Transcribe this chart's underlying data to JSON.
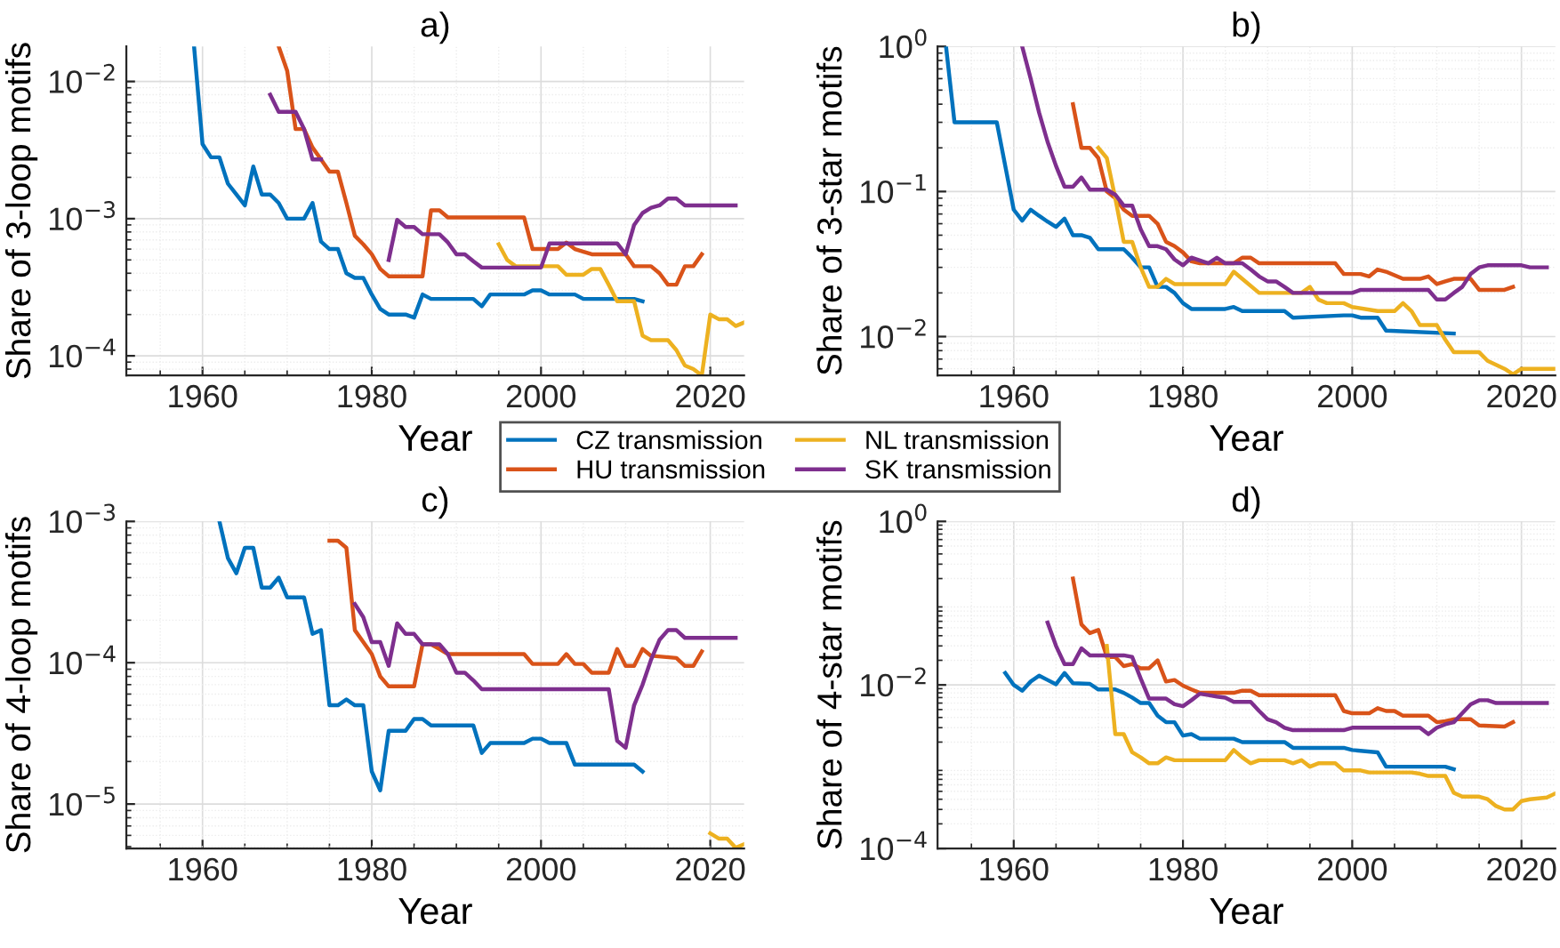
{
  "chart_data": [
    {
      "type": "line",
      "title": "a)",
      "xlabel": "Year",
      "ylabel": "Share of 3-loop motifs",
      "log": "y",
      "grid": true,
      "legend": "bottom",
      "line_style": "solid",
      "marker": "none",
      "xlim": [
        1951,
        2024
      ],
      "xticks": [
        1960,
        1980,
        2000,
        2020
      ],
      "ylim": [
        7.2e-05,
        0.018
      ],
      "yticks": [
        {
          "value": 0.0001,
          "label": "10$^{−4}$"
        },
        {
          "value": 0.001,
          "label": "10$^{−3}$"
        },
        {
          "value": 0.01,
          "label": "10$^{−2}$"
        }
      ],
      "series": [
        {
          "name": "CZ transmission",
          "color": "#0072bd",
          "x": [
            1959,
            1960,
            1961,
            1962,
            1963,
            1964,
            1965,
            1966,
            1967,
            1968,
            1969,
            1970,
            1971,
            1972,
            1973,
            1974,
            1975,
            1976,
            1977,
            1978,
            1979,
            1980,
            1981,
            1982,
            1983,
            1984,
            1985,
            1986,
            1987,
            1992,
            1993,
            1994,
            1998,
            1999,
            2000,
            2001,
            2004,
            2005,
            2011,
            2012
          ],
          "values": [
            0.018,
            0.0035,
            0.0028,
            0.0028,
            0.0018,
            0.0015,
            0.00125,
            0.0024,
            0.0015,
            0.0015,
            0.0013,
            0.001,
            0.001,
            0.001,
            0.0013,
            0.00068,
            0.0006,
            0.0006,
            0.0004,
            0.00037,
            0.00037,
            0.00028,
            0.00022,
            0.0002,
            0.0002,
            0.0002,
            0.00019,
            0.00028,
            0.00026,
            0.00026,
            0.00023,
            0.00028,
            0.00028,
            0.0003,
            0.0003,
            0.00028,
            0.00028,
            0.00026,
            0.00026,
            0.00025
          ]
        },
        {
          "name": "HU transmission",
          "color": "#d95319",
          "x": [
            1969,
            1970,
            1971,
            1972,
            1973,
            1974,
            1975,
            1976,
            1977,
            1978,
            1979,
            1980,
            1981,
            1982,
            1986,
            1987,
            1988,
            1989,
            1998,
            1999,
            2002,
            2003,
            2004,
            2006,
            2010,
            2011,
            2013,
            2014,
            2015,
            2016,
            2017,
            2018,
            2019
          ],
          "values": [
            0.018,
            0.012,
            0.0045,
            0.0045,
            0.0033,
            0.0027,
            0.0022,
            0.0022,
            0.0013,
            0.00075,
            0.00065,
            0.00055,
            0.00043,
            0.00038,
            0.00038,
            0.00115,
            0.00115,
            0.00102,
            0.00102,
            0.0006,
            0.0006,
            0.00067,
            0.0006,
            0.00055,
            0.00055,
            0.00045,
            0.00045,
            0.0004,
            0.00033,
            0.00033,
            0.00045,
            0.00045,
            0.00055
          ]
        },
        {
          "name": "NL transmission",
          "color": "#edb120",
          "x": [
            1995,
            1996,
            1997,
            2002,
            2003,
            2005,
            2006,
            2007,
            2008,
            2009,
            2011,
            2012,
            2013,
            2015,
            2016,
            2017,
            2018,
            2019,
            2020,
            2021,
            2022,
            2023,
            2024
          ],
          "values": [
            0.00065,
            0.0005,
            0.00045,
            0.00045,
            0.00039,
            0.00039,
            0.00043,
            0.00043,
            0.00033,
            0.00025,
            0.00025,
            0.00014,
            0.00013,
            0.00013,
            0.00011,
            8.5e-05,
            8e-05,
            7.2e-05,
            0.0002,
            0.000185,
            0.000185,
            0.000165,
            0.000175
          ]
        },
        {
          "name": "SK transmission",
          "color": "#7e2f8e",
          "x": [
            1968,
            1969,
            1971,
            1972,
            1973,
            1974,
            1978,
            1982,
            1983,
            1984,
            1985,
            1986,
            1988,
            1989,
            1990,
            1991,
            1992,
            1993,
            1999,
            2000,
            2001,
            2009,
            2010,
            2011,
            2012,
            2013,
            2014,
            2015,
            2016,
            2017,
            2023
          ],
          "values": [
            0.008,
            0.006,
            0.006,
            0.0045,
            0.0027,
            0.0027,
            null,
            0.0005,
            0.00098,
            0.00087,
            0.00087,
            0.00077,
            0.00077,
            0.00067,
            0.00055,
            0.00055,
            0.00049,
            0.00044,
            0.00044,
            0.00044,
            0.00066,
            0.00066,
            0.00055,
            0.0009,
            0.0011,
            0.0012,
            0.00125,
            0.0014,
            0.0014,
            0.00125,
            0.00125
          ]
        }
      ]
    },
    {
      "type": "line",
      "title": "b)",
      "xlabel": "Year",
      "ylabel": "Share of 3-star motifs",
      "log": "y",
      "grid": true,
      "legend": false,
      "line_style": "solid",
      "marker": "none",
      "xlim": [
        1951,
        2024
      ],
      "xticks": [
        1960,
        1980,
        2000,
        2020
      ],
      "ylim": [
        0.0054,
        1
      ],
      "yticks": [
        {
          "value": 0.01,
          "label": "10$^{−2}$"
        },
        {
          "value": 0.1,
          "label": "10$^{−1}$"
        },
        {
          "value": 1,
          "label": "10$^{0}$"
        }
      ],
      "series": [
        {
          "color": "#0072bd",
          "x": [
            1952,
            1953,
            1957,
            1958,
            1959,
            1960,
            1961,
            1962,
            1963,
            1964,
            1965,
            1966,
            1967,
            1968,
            1969,
            1970,
            1973,
            1974,
            1975,
            1976,
            1977,
            1978,
            1979,
            1980,
            1981,
            1985,
            1986,
            1987,
            1992,
            1993,
            1999,
            2000,
            2001,
            2003,
            2004,
            2012
          ],
          "values": [
            1.0,
            0.3,
            0.3,
            0.3,
            0.15,
            0.075,
            0.063,
            0.075,
            0.068,
            0.062,
            0.057,
            0.065,
            0.05,
            0.05,
            0.048,
            0.04,
            0.04,
            0.035,
            0.03,
            0.03,
            0.022,
            0.022,
            0.02,
            0.017,
            0.0155,
            0.0155,
            0.016,
            0.015,
            0.015,
            0.0135,
            0.014,
            0.014,
            0.0135,
            0.0135,
            0.011,
            0.0105
          ]
        },
        {
          "color": "#d95319",
          "x": [
            1967,
            1968,
            1969,
            1970,
            1971,
            1972,
            1973,
            1974,
            1976,
            1977,
            1978,
            1979,
            1980,
            1981,
            1982,
            1986,
            1987,
            1988,
            1989,
            1998,
            1999,
            2001,
            2002,
            2003,
            2004,
            2006,
            2008,
            2009,
            2010,
            2011,
            2012,
            2014,
            2015,
            2018,
            2019
          ],
          "values": [
            0.4,
            0.2,
            0.2,
            0.17,
            0.1,
            0.09,
            0.075,
            0.068,
            0.068,
            0.06,
            0.045,
            0.042,
            0.038,
            0.033,
            0.032,
            0.032,
            0.035,
            0.035,
            0.032,
            0.032,
            0.027,
            0.027,
            0.026,
            0.029,
            0.028,
            0.025,
            0.025,
            0.026,
            0.023,
            0.024,
            0.025,
            0.025,
            0.021,
            0.021,
            0.022
          ]
        },
        {
          "color": "#edb120",
          "x": [
            1970,
            1971,
            1972,
            1973,
            1974,
            1975,
            1976,
            1977,
            1978,
            1979,
            1985,
            1986,
            1987,
            1989,
            1994,
            1995,
            1996,
            1997,
            1999,
            2000,
            2003,
            2005,
            2006,
            2007,
            2008,
            2010,
            2011,
            2012,
            2015,
            2016,
            2018,
            2019,
            2020,
            2024
          ],
          "values": [
            0.2,
            0.17,
            0.09,
            0.045,
            0.045,
            0.03,
            0.022,
            0.022,
            0.025,
            0.023,
            0.023,
            0.028,
            0.025,
            0.02,
            0.02,
            0.022,
            0.018,
            0.017,
            0.017,
            0.016,
            0.015,
            0.015,
            0.017,
            0.015,
            0.012,
            0.012,
            0.0095,
            0.0078,
            0.0078,
            0.0068,
            0.006,
            0.0055,
            0.006,
            0.006
          ]
        },
        {
          "color": "#7e2f8e",
          "x": [
            1961,
            1962,
            1963,
            1964,
            1965,
            1966,
            1967,
            1968,
            1969,
            1971,
            1972,
            1973,
            1974,
            1975,
            1976,
            1977,
            1978,
            1979,
            1980,
            1981,
            1983,
            1984,
            1985,
            1987,
            1988,
            1989,
            1990,
            1991,
            1992,
            1993,
            1999,
            2000,
            2001,
            2009,
            2010,
            2011,
            2012,
            2013,
            2014,
            2015,
            2016,
            2020,
            2021,
            2023
          ],
          "values": [
            1.0,
            0.6,
            0.35,
            0.22,
            0.15,
            0.108,
            0.108,
            0.125,
            0.103,
            0.103,
            0.095,
            0.08,
            0.08,
            0.055,
            0.042,
            0.042,
            0.04,
            0.034,
            0.031,
            0.035,
            0.032,
            0.035,
            0.032,
            0.032,
            0.029,
            0.026,
            0.024,
            0.024,
            0.022,
            0.02,
            0.02,
            0.02,
            0.021,
            0.021,
            0.018,
            0.018,
            0.02,
            0.022,
            0.027,
            0.03,
            0.031,
            0.031,
            0.03,
            0.03
          ]
        }
      ]
    },
    {
      "type": "line",
      "title": "c)",
      "xlabel": "Year",
      "ylabel": "Share of 4-loop motifs",
      "log": "y",
      "grid": true,
      "legend": false,
      "line_style": "solid",
      "marker": "none",
      "xlim": [
        1951,
        2024
      ],
      "xticks": [
        1960,
        1980,
        2000,
        2020
      ],
      "ylim": [
        4.85e-06,
        0.001
      ],
      "yticks": [
        {
          "value": 1e-05,
          "label": "10$^{−5}$"
        },
        {
          "value": 0.0001,
          "label": "10$^{−4}$"
        },
        {
          "value": 0.001,
          "label": "10$^{−3}$"
        }
      ],
      "series": [
        {
          "color": "#0072bd",
          "x": [
            1962,
            1963,
            1964,
            1965,
            1966,
            1967,
            1968,
            1969,
            1970,
            1972,
            1973,
            1974,
            1975,
            1976,
            1977,
            1978,
            1979,
            1980,
            1981,
            1982,
            1984,
            1985,
            1986,
            1987,
            1992,
            1993,
            1994,
            1998,
            1999,
            2000,
            2001,
            2003,
            2004,
            2011,
            2012
          ],
          "values": [
            0.001,
            0.00055,
            0.00043,
            0.00065,
            0.00065,
            0.00034,
            0.00034,
            0.0004,
            0.00029,
            0.00029,
            0.00016,
            0.00017,
            5e-05,
            5e-05,
            5.5e-05,
            5e-05,
            5e-05,
            1.7e-05,
            1.25e-05,
            3.3e-05,
            3.3e-05,
            4e-05,
            4e-05,
            3.6e-05,
            3.6e-05,
            2.3e-05,
            2.7e-05,
            2.7e-05,
            2.9e-05,
            2.9e-05,
            2.7e-05,
            2.7e-05,
            1.9e-05,
            1.9e-05,
            1.7e-05
          ]
        },
        {
          "color": "#d95319",
          "x": [
            1975,
            1976,
            1977,
            1978,
            1979,
            1980,
            1981,
            1982,
            1985,
            1986,
            1987,
            1988,
            1989,
            1998,
            1999,
            2002,
            2003,
            2004,
            2005,
            2006,
            2008,
            2009,
            2010,
            2011,
            2012,
            2013,
            2016,
            2017,
            2018,
            2019
          ],
          "values": [
            0.00073,
            0.00073,
            0.00065,
            0.00017,
            0.00014,
            0.000115,
            8e-05,
            6.8e-05,
            6.8e-05,
            0.000135,
            0.000135,
            0.000125,
            0.000115,
            0.000115,
            9.8e-05,
            9.8e-05,
            0.000115,
            9.8e-05,
            9.8e-05,
            8.5e-05,
            8.5e-05,
            0.000125,
            9.5e-05,
            9.5e-05,
            0.000125,
            0.000112,
            0.000108,
            9.5e-05,
            9.5e-05,
            0.00012
          ]
        },
        {
          "color": "#edb120",
          "x": [
            2020,
            2021,
            2022,
            2023,
            2024
          ],
          "values": [
            6.2e-06,
            5.7e-06,
            5.7e-06,
            4.9e-06,
            5.2e-06
          ]
        },
        {
          "color": "#7e2f8e",
          "x": [
            1978,
            1979,
            1980,
            1981,
            1982,
            1983,
            1984,
            1985,
            1986,
            1988,
            1989,
            1990,
            1991,
            1992,
            1993,
            2008,
            2009,
            2010,
            2011,
            2012,
            2013,
            2014,
            2015,
            2016,
            2017,
            2023
          ],
          "values": [
            0.00026,
            0.00021,
            0.00014,
            0.00014,
            9.5e-05,
            0.00019,
            0.00016,
            0.00016,
            0.000135,
            0.000135,
            0.000115,
            8.5e-05,
            8.5e-05,
            7.5e-05,
            6.5e-05,
            6.5e-05,
            2.8e-05,
            2.5e-05,
            5e-05,
            7e-05,
            0.000105,
            0.000145,
            0.00017,
            0.00017,
            0.00015,
            0.00015
          ]
        }
      ]
    },
    {
      "type": "line",
      "title": "d)",
      "xlabel": "Year",
      "ylabel": "Share of 4-star motifs",
      "log": "y",
      "grid": true,
      "legend": false,
      "line_style": "solid",
      "marker": "none",
      "xlim": [
        1951,
        2024
      ],
      "xticks": [
        1960,
        1980,
        2000,
        2020
      ],
      "ylim": [
        0.0001,
        1
      ],
      "yticks": [
        {
          "value": 0.0001,
          "label": "10$^{−4}$"
        },
        {
          "value": 0.01,
          "label": "10$^{−2}$"
        },
        {
          "value": 1,
          "label": "10$^{0}$"
        }
      ],
      "series": [
        {
          "color": "#0072bd",
          "x": [
            1959,
            1960,
            1961,
            1962,
            1963,
            1964,
            1965,
            1966,
            1967,
            1969,
            1970,
            1972,
            1973,
            1974,
            1975,
            1976,
            1977,
            1978,
            1979,
            1980,
            1981,
            1982,
            1986,
            1987,
            1992,
            1993,
            1999,
            2000,
            2003,
            2004,
            2011,
            2012
          ],
          "values": [
            0.014,
            0.01,
            0.0085,
            0.011,
            0.013,
            0.0115,
            0.0102,
            0.014,
            0.0105,
            0.0103,
            0.0088,
            0.0088,
            0.008,
            0.007,
            0.006,
            0.006,
            0.0042,
            0.0035,
            0.0035,
            0.0024,
            0.0025,
            0.0022,
            0.0022,
            0.002,
            0.002,
            0.0017,
            0.0017,
            0.0016,
            0.0015,
            0.001,
            0.001,
            0.00093
          ]
        },
        {
          "color": "#d95319",
          "x": [
            1967,
            1968,
            1969,
            1970,
            1971,
            1972,
            1973,
            1974,
            1975,
            1976,
            1977,
            1978,
            1979,
            1980,
            1981,
            1982,
            1986,
            1987,
            1988,
            1989,
            1998,
            1999,
            2000,
            2002,
            2003,
            2004,
            2005,
            2006,
            2009,
            2010,
            2011,
            2012,
            2014,
            2015,
            2018,
            2019
          ],
          "values": [
            0.2,
            0.055,
            0.043,
            0.047,
            0.022,
            0.022,
            0.017,
            0.018,
            0.016,
            0.016,
            0.02,
            0.011,
            0.0115,
            0.0098,
            0.0088,
            0.008,
            0.008,
            0.0085,
            0.0085,
            0.0075,
            0.0075,
            0.0048,
            0.0045,
            0.0045,
            0.0052,
            0.0048,
            0.0048,
            0.0042,
            0.0042,
            0.0035,
            0.0036,
            0.0038,
            0.0038,
            0.0032,
            0.0031,
            0.0035
          ]
        },
        {
          "color": "#edb120",
          "x": [
            1971,
            1972,
            1973,
            1974,
            1975,
            1976,
            1977,
            1978,
            1979,
            1985,
            1986,
            1987,
            1988,
            1989,
            1992,
            1993,
            1994,
            1995,
            1996,
            1998,
            1999,
            2001,
            2002,
            2007,
            2008,
            2009,
            2011,
            2012,
            2013,
            2015,
            2016,
            2017,
            2018,
            2019,
            2020,
            2021,
            2023,
            2024
          ],
          "values": [
            0.03,
            0.0025,
            0.0025,
            0.0015,
            0.0013,
            0.0011,
            0.0011,
            0.0013,
            0.0012,
            0.0012,
            0.0016,
            0.0013,
            0.0011,
            0.0012,
            0.0012,
            0.0011,
            0.0012,
            0.001,
            0.0011,
            0.0011,
            0.0009,
            0.0009,
            0.00085,
            0.00085,
            0.00082,
            0.00077,
            0.00077,
            0.00048,
            0.00043,
            0.00043,
            0.0004,
            0.00033,
            0.0003,
            0.0003,
            0.00038,
            0.0004,
            0.00042,
            0.00047
          ]
        },
        {
          "color": "#7e2f8e",
          "x": [
            1964,
            1965,
            1966,
            1967,
            1968,
            1969,
            1973,
            1974,
            1975,
            1976,
            1978,
            1979,
            1980,
            1981,
            1982,
            1983,
            1984,
            1985,
            1986,
            1988,
            1989,
            1990,
            1991,
            1992,
            1993,
            1999,
            2000,
            2008,
            2009,
            2010,
            2011,
            2012,
            2013,
            2014,
            2015,
            2016,
            2017,
            2023
          ],
          "values": [
            0.058,
            0.03,
            0.018,
            0.018,
            0.028,
            0.023,
            0.023,
            0.022,
            0.012,
            0.0068,
            0.0068,
            0.0058,
            0.0055,
            0.0065,
            0.0078,
            0.0075,
            0.0072,
            0.007,
            0.0062,
            0.0062,
            0.0048,
            0.0038,
            0.0035,
            0.003,
            0.0028,
            0.0028,
            0.003,
            0.003,
            0.0025,
            0.003,
            0.0033,
            0.0035,
            0.0045,
            0.0058,
            0.0065,
            0.0065,
            0.006,
            0.006
          ]
        }
      ]
    }
  ]
}
